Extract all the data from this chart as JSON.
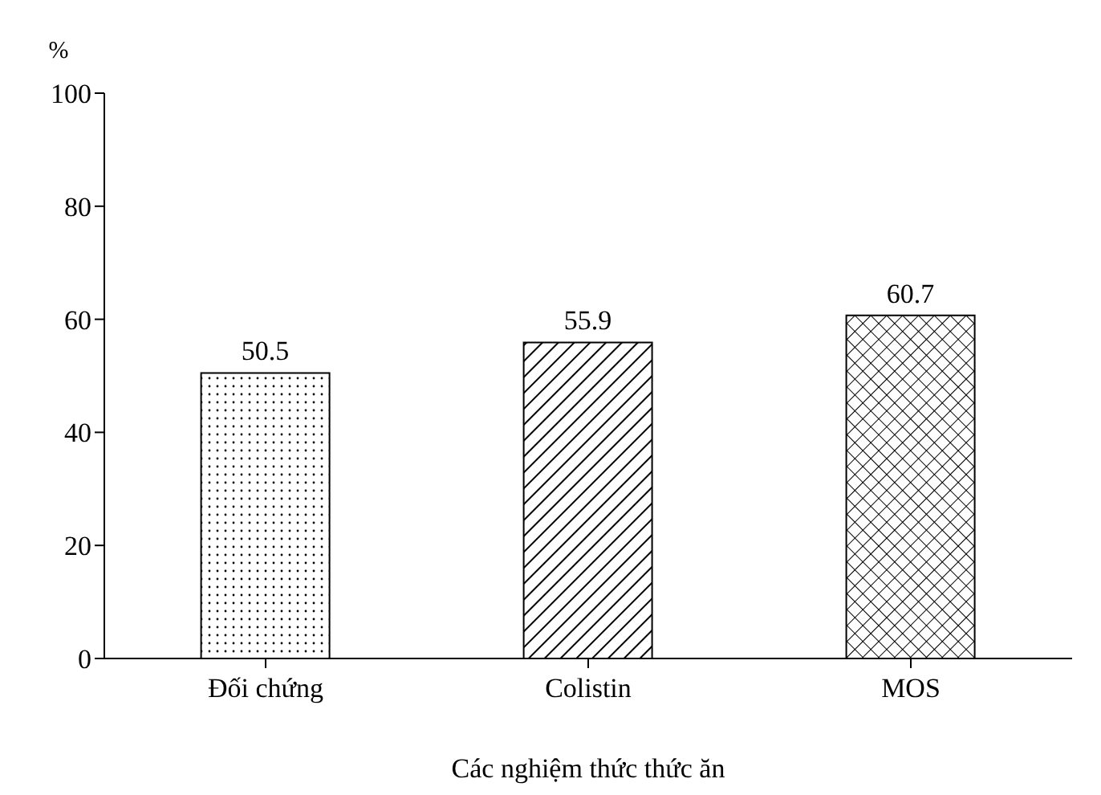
{
  "chart_data": {
    "type": "bar",
    "ylabel": "%",
    "xlabel": "Các nghiệm thức thức ăn",
    "categories": [
      "Đối chứng",
      "Colistin",
      "MOS"
    ],
    "values": [
      50.5,
      55.9,
      60.7
    ],
    "colors": [
      "#000000",
      "#000000",
      "#000000"
    ],
    "ylim": [
      0,
      100
    ],
    "yticks": [
      0,
      20,
      40,
      60,
      80,
      100
    ],
    "data_labels": true,
    "grid": false
  }
}
